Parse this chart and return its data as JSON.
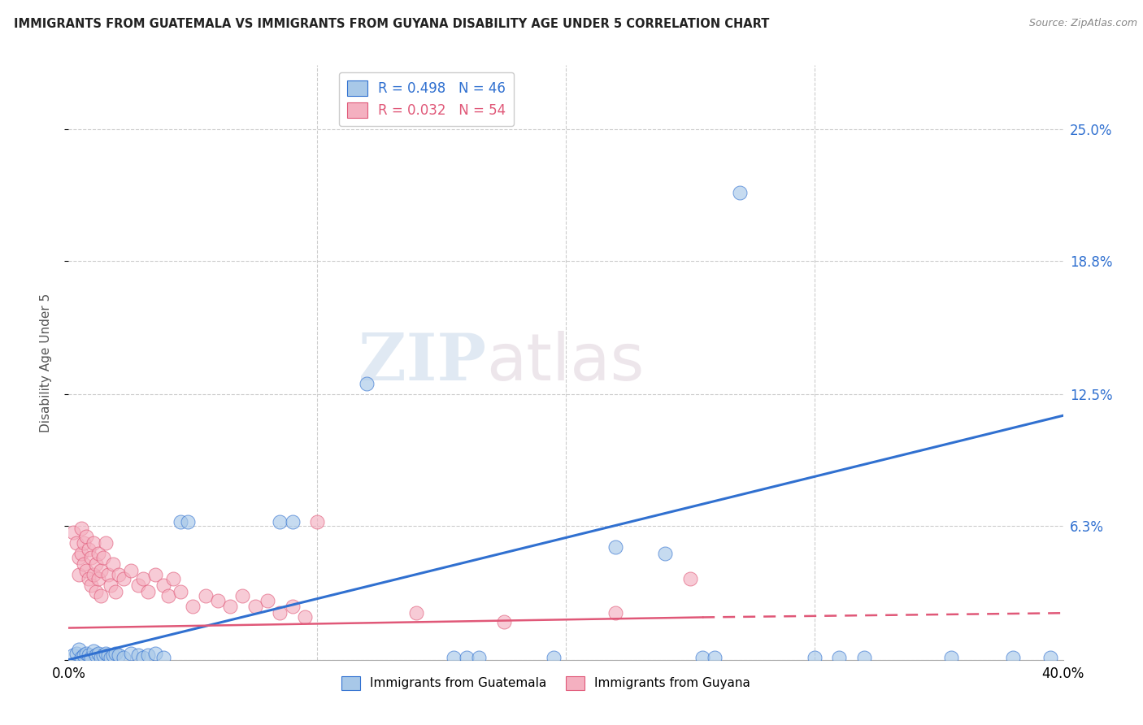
{
  "title": "IMMIGRANTS FROM GUATEMALA VS IMMIGRANTS FROM GUYANA DISABILITY AGE UNDER 5 CORRELATION CHART",
  "source": "Source: ZipAtlas.com",
  "ylabel": "Disability Age Under 5",
  "ytick_labels": [
    "",
    "6.3%",
    "12.5%",
    "18.8%",
    "25.0%"
  ],
  "ytick_values": [
    0.0,
    0.063,
    0.125,
    0.188,
    0.25
  ],
  "xlim": [
    0.0,
    0.4
  ],
  "ylim": [
    0.0,
    0.28
  ],
  "r_guatemala": 0.498,
  "n_guatemala": 46,
  "r_guyana": 0.032,
  "n_guyana": 54,
  "color_guatemala": "#a8c8e8",
  "color_guyana": "#f4b0c0",
  "line_color_guatemala": "#3070d0",
  "line_color_guyana": "#e05878",
  "watermark_zip": "ZIP",
  "watermark_atlas": "atlas",
  "guatemala_points": [
    [
      0.002,
      0.002
    ],
    [
      0.003,
      0.003
    ],
    [
      0.004,
      0.005
    ],
    [
      0.005,
      0.001
    ],
    [
      0.006,
      0.002
    ],
    [
      0.007,
      0.003
    ],
    [
      0.008,
      0.002
    ],
    [
      0.009,
      0.001
    ],
    [
      0.01,
      0.004
    ],
    [
      0.011,
      0.002
    ],
    [
      0.012,
      0.003
    ],
    [
      0.013,
      0.001
    ],
    [
      0.014,
      0.002
    ],
    [
      0.015,
      0.003
    ],
    [
      0.016,
      0.002
    ],
    [
      0.017,
      0.001
    ],
    [
      0.018,
      0.002
    ],
    [
      0.019,
      0.003
    ],
    [
      0.02,
      0.002
    ],
    [
      0.022,
      0.001
    ],
    [
      0.025,
      0.003
    ],
    [
      0.028,
      0.002
    ],
    [
      0.03,
      0.001
    ],
    [
      0.032,
      0.002
    ],
    [
      0.035,
      0.003
    ],
    [
      0.038,
      0.001
    ],
    [
      0.045,
      0.065
    ],
    [
      0.048,
      0.065
    ],
    [
      0.085,
      0.065
    ],
    [
      0.09,
      0.065
    ],
    [
      0.12,
      0.13
    ],
    [
      0.155,
      0.001
    ],
    [
      0.16,
      0.001
    ],
    [
      0.165,
      0.001
    ],
    [
      0.195,
      0.001
    ],
    [
      0.22,
      0.053
    ],
    [
      0.24,
      0.05
    ],
    [
      0.255,
      0.001
    ],
    [
      0.26,
      0.001
    ],
    [
      0.27,
      0.22
    ],
    [
      0.3,
      0.001
    ],
    [
      0.31,
      0.001
    ],
    [
      0.32,
      0.001
    ],
    [
      0.355,
      0.001
    ],
    [
      0.38,
      0.001
    ],
    [
      0.395,
      0.001
    ]
  ],
  "guyana_points": [
    [
      0.002,
      0.06
    ],
    [
      0.003,
      0.055
    ],
    [
      0.004,
      0.048
    ],
    [
      0.004,
      0.04
    ],
    [
      0.005,
      0.062
    ],
    [
      0.005,
      0.05
    ],
    [
      0.006,
      0.055
    ],
    [
      0.006,
      0.045
    ],
    [
      0.007,
      0.058
    ],
    [
      0.007,
      0.042
    ],
    [
      0.008,
      0.052
    ],
    [
      0.008,
      0.038
    ],
    [
      0.009,
      0.048
    ],
    [
      0.009,
      0.035
    ],
    [
      0.01,
      0.055
    ],
    [
      0.01,
      0.04
    ],
    [
      0.011,
      0.045
    ],
    [
      0.011,
      0.032
    ],
    [
      0.012,
      0.05
    ],
    [
      0.012,
      0.038
    ],
    [
      0.013,
      0.042
    ],
    [
      0.013,
      0.03
    ],
    [
      0.014,
      0.048
    ],
    [
      0.015,
      0.055
    ],
    [
      0.016,
      0.04
    ],
    [
      0.017,
      0.035
    ],
    [
      0.018,
      0.045
    ],
    [
      0.019,
      0.032
    ],
    [
      0.02,
      0.04
    ],
    [
      0.022,
      0.038
    ],
    [
      0.025,
      0.042
    ],
    [
      0.028,
      0.035
    ],
    [
      0.03,
      0.038
    ],
    [
      0.032,
      0.032
    ],
    [
      0.035,
      0.04
    ],
    [
      0.038,
      0.035
    ],
    [
      0.04,
      0.03
    ],
    [
      0.042,
      0.038
    ],
    [
      0.045,
      0.032
    ],
    [
      0.05,
      0.025
    ],
    [
      0.055,
      0.03
    ],
    [
      0.06,
      0.028
    ],
    [
      0.065,
      0.025
    ],
    [
      0.07,
      0.03
    ],
    [
      0.075,
      0.025
    ],
    [
      0.08,
      0.028
    ],
    [
      0.085,
      0.022
    ],
    [
      0.09,
      0.025
    ],
    [
      0.095,
      0.02
    ],
    [
      0.1,
      0.065
    ],
    [
      0.14,
      0.022
    ],
    [
      0.175,
      0.018
    ],
    [
      0.22,
      0.022
    ],
    [
      0.25,
      0.038
    ]
  ],
  "blue_line": [
    [
      0.0,
      0.0
    ],
    [
      0.4,
      0.115
    ]
  ],
  "pink_solid_line": [
    [
      0.0,
      0.015
    ],
    [
      0.255,
      0.02
    ]
  ],
  "pink_dashed_line": [
    [
      0.255,
      0.02
    ],
    [
      0.4,
      0.022
    ]
  ]
}
